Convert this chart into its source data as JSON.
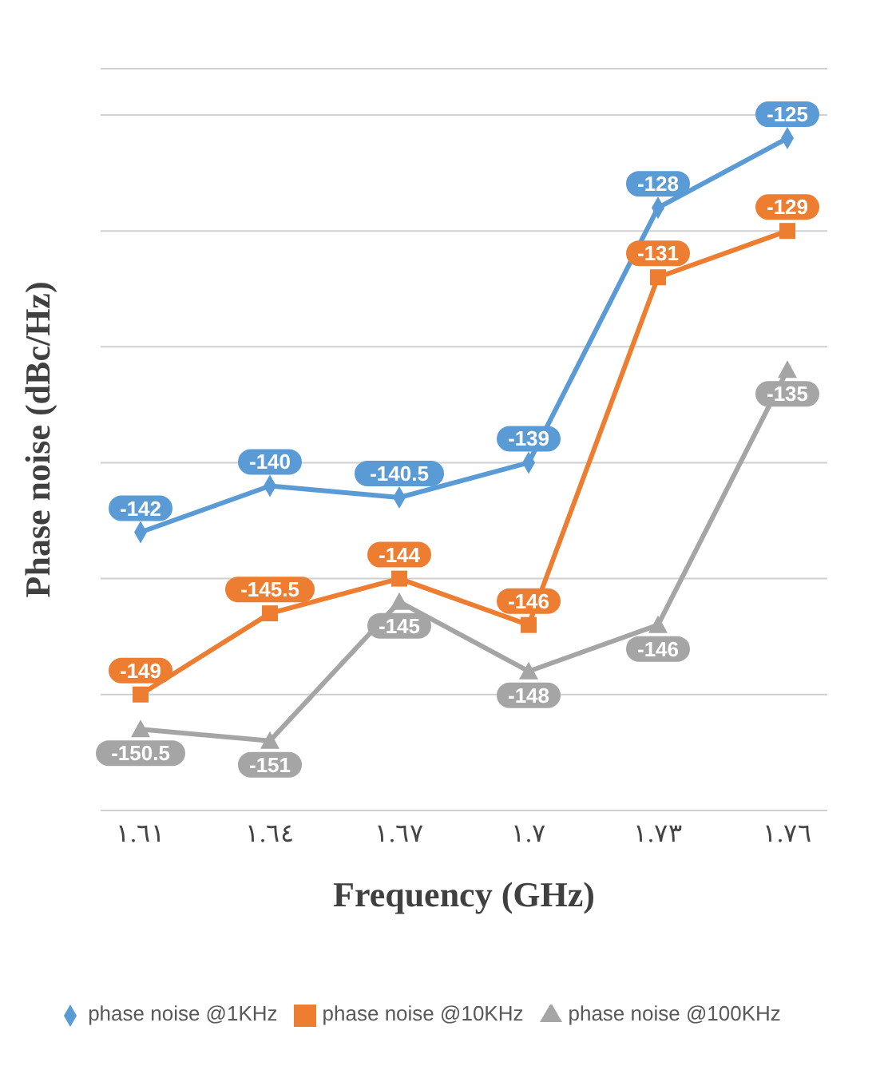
{
  "chart_data": {
    "type": "line",
    "xlabel": "Frequency (GHz)",
    "ylabel": "Phase noise (dBc/Hz)",
    "categories": [
      "١.٦١",
      "١.٦٤",
      "١.٦٧",
      "١.٧",
      "١.٧٣",
      "١.٧٦"
    ],
    "series": [
      {
        "name": "phase noise @1KHz",
        "color": "#5b9bd5",
        "marker": "diamond",
        "values": [
          -142,
          -140,
          -140.5,
          -139,
          -128,
          -125
        ]
      },
      {
        "name": "phase noise @10KHz",
        "color": "#ed7d31",
        "marker": "square",
        "values": [
          -149,
          -145.5,
          -144,
          -146,
          -131,
          -129
        ]
      },
      {
        "name": "phase noise @100KHz",
        "color": "#a5a5a5",
        "marker": "triangle",
        "values": [
          -150.5,
          -151,
          -145,
          -148,
          -146,
          -135
        ]
      }
    ],
    "data_labels": true,
    "grid": "y",
    "legend": "bottom",
    "tick_labels": "x"
  }
}
